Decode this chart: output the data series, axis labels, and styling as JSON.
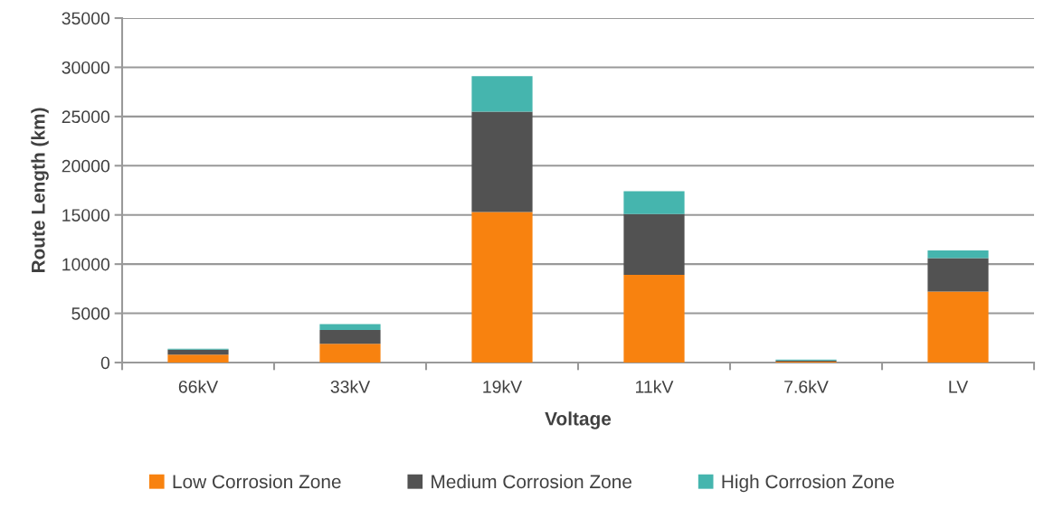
{
  "chart_data": {
    "type": "bar",
    "stacked": true,
    "xlabel": "Voltage",
    "ylabel": "Route Length (km)",
    "categories": [
      "66kV",
      "33kV",
      "19kV",
      "11kV",
      "7.6kV",
      "LV"
    ],
    "series": [
      {
        "name": "Low Corrosion Zone",
        "color": "#f8820f",
        "values": [
          800,
          1900,
          15300,
          8900,
          100,
          7200
        ]
      },
      {
        "name": "Medium Corrosion Zone",
        "color": "#525252",
        "values": [
          500,
          1400,
          10200,
          6200,
          100,
          3400
        ]
      },
      {
        "name": "High Corrosion Zone",
        "color": "#45b5ae",
        "values": [
          100,
          600,
          3600,
          2300,
          100,
          800
        ]
      }
    ],
    "ylim": [
      0,
      35000
    ],
    "yticks": [
      0,
      5000,
      10000,
      15000,
      20000,
      25000,
      30000,
      35000
    ],
    "grid": "y",
    "legend": "bottom"
  }
}
